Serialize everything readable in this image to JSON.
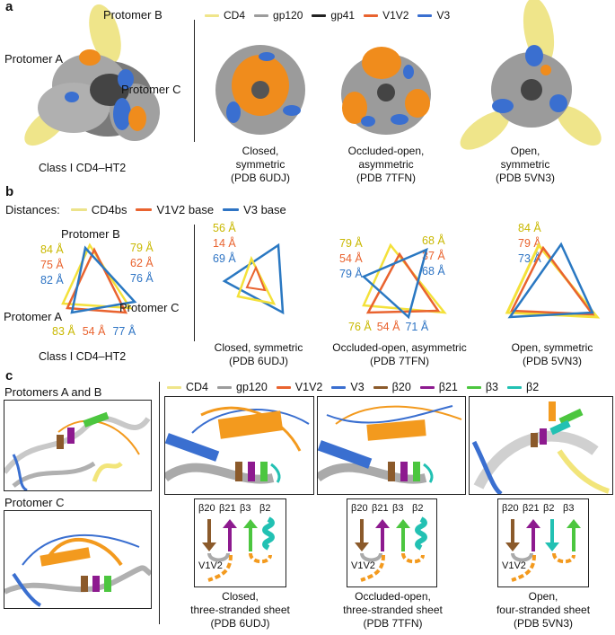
{
  "panels": {
    "a": "a",
    "b": "b",
    "c": "c"
  },
  "colors": {
    "cd4": "#efe58a",
    "gp120": "#a8a8a8",
    "gp41": "#222222",
    "v1v2": "#e9632f",
    "v3": "#3a6fd0",
    "orange": "#f39a1e",
    "b20": "#8b5a2b",
    "b21": "#8d1a8f",
    "b3": "#4cc63f",
    "b2": "#22c1b3",
    "cd4bs": "#ece38a",
    "v1v2base": "#e9632f",
    "v3base": "#2e74c4",
    "v1v2text": "#d9662b",
    "tri_yellow": "#f4e13a",
    "tri_blue": "#2a78c2"
  },
  "panel_a": {
    "legend": [
      {
        "label": "CD4",
        "color": "#efe58a"
      },
      {
        "label": "gp120",
        "color": "#9c9c9c"
      },
      {
        "label": "gp41",
        "color": "#222222"
      },
      {
        "label": "V1V2",
        "color": "#e9632f"
      },
      {
        "label": "V3",
        "color": "#3a6fd0"
      }
    ],
    "protomer_a": "Protomer A",
    "protomer_b": "Protomer B",
    "protomer_c": "Protomer C",
    "left_caption": "Class I CD4–HT2",
    "captions": [
      "Closed,\nsymmetric\n(PDB 6UDJ)",
      "Occluded-open,\nasymmetric\n(PDB 7TFN)",
      "Open,\nsymmetric\n(PDB 5VN3)"
    ]
  },
  "panel_b": {
    "distances_label": "Distances:",
    "legend": [
      {
        "label": "CD4bs",
        "color": "#ece38a"
      },
      {
        "label": "V1V2 base",
        "color": "#e9632f"
      },
      {
        "label": "V3 base",
        "color": "#2e74c4"
      }
    ],
    "protomer_b": "Protomer B",
    "protomer_a": "Protomer A",
    "protomer_c": "Protomer C",
    "left_ab": [
      "84 Å",
      "75 Å",
      "82 Å"
    ],
    "left_bc": [
      "79 Å",
      "62 Å",
      "76 Å"
    ],
    "left_ac": [
      "83 Å",
      "54 Å",
      "77 Å"
    ],
    "left_caption": "Class I CD4–HT2",
    "closed": [
      "56 Å",
      "14 Å",
      "69 Å"
    ],
    "occ_left": [
      "79 Å",
      "54 Å",
      "79 Å"
    ],
    "occ_right": [
      "68 Å",
      "37 Å",
      "68 Å"
    ],
    "occ_bottom": [
      "76 Å",
      "54 Å",
      "71 Å"
    ],
    "open": [
      "84 Å",
      "79 Å",
      "73 Å"
    ],
    "captions": [
      "Closed, symmetric\n(PDB 6UDJ)",
      "Occluded-open, asymmetric\n(PDB 7TFN)",
      "Open, symmetric\n(PDB 5VN3)"
    ]
  },
  "panel_c": {
    "left_top_title": "Protomers A and B",
    "left_bottom_title": "Protomer C",
    "legend": [
      {
        "label": "CD4",
        "color": "#efe58a"
      },
      {
        "label": "gp120",
        "color": "#9c9c9c"
      },
      {
        "label": "V1V2",
        "color": "#e9632f"
      },
      {
        "label": "V3",
        "color": "#3a6fd0"
      },
      {
        "label": "β20",
        "color": "#8b5a2b"
      },
      {
        "label": "β21",
        "color": "#8d1a8f"
      },
      {
        "label": "β3",
        "color": "#4cc63f"
      },
      {
        "label": "β2",
        "color": "#22c1b3"
      }
    ],
    "topo": [
      {
        "labels": [
          "β20",
          "β21",
          "β3",
          "β2"
        ],
        "v1v2": "V1V2"
      },
      {
        "labels": [
          "β20",
          "β21",
          "β3",
          "β2"
        ],
        "v1v2": "V1V2"
      },
      {
        "labels": [
          "β20",
          "β21",
          "β2",
          "β3"
        ],
        "v1v2": "V1V2"
      }
    ],
    "captions": [
      "Closed,\nthree-stranded sheet\n(PDB 6UDJ)",
      "Occluded-open,\nthree-stranded sheet\n(PDB 7TFN)",
      "Open,\nfour-stranded sheet\n(PDB 5VN3)"
    ]
  }
}
